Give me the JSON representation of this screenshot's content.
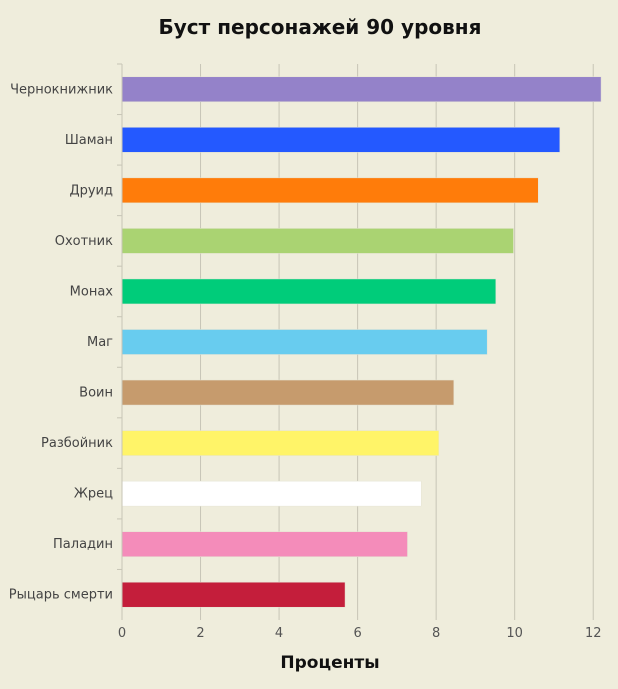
{
  "chart_data": {
    "type": "bar",
    "orientation": "horizontal",
    "title": "Буст персонажей 90 уровня",
    "xlabel": "Проценты",
    "ylabel": "",
    "xlim": [
      0,
      12.3
    ],
    "x_ticks": [
      "0",
      "2",
      "4",
      "6",
      "8",
      "10",
      "12"
    ],
    "grid": "vertical",
    "legend": "none",
    "categories": [
      "Чернокнижник",
      "Шаман",
      "Друид",
      "Охотник",
      "Монах",
      "Маг",
      "Воин",
      "Разбойник",
      "Жрец",
      "Паладин",
      "Рыцарь смерти"
    ],
    "values": [
      12.2,
      11.15,
      10.6,
      9.97,
      9.52,
      9.3,
      8.45,
      8.07,
      7.62,
      7.27,
      5.68
    ],
    "colors": [
      "#9482c9",
      "#2459ff",
      "#ff7c0a",
      "#aad372",
      "#00cc7a",
      "#68ccef",
      "#c69b6d",
      "#fff468",
      "#ffffff",
      "#f48cba",
      "#c41e3b"
    ]
  }
}
